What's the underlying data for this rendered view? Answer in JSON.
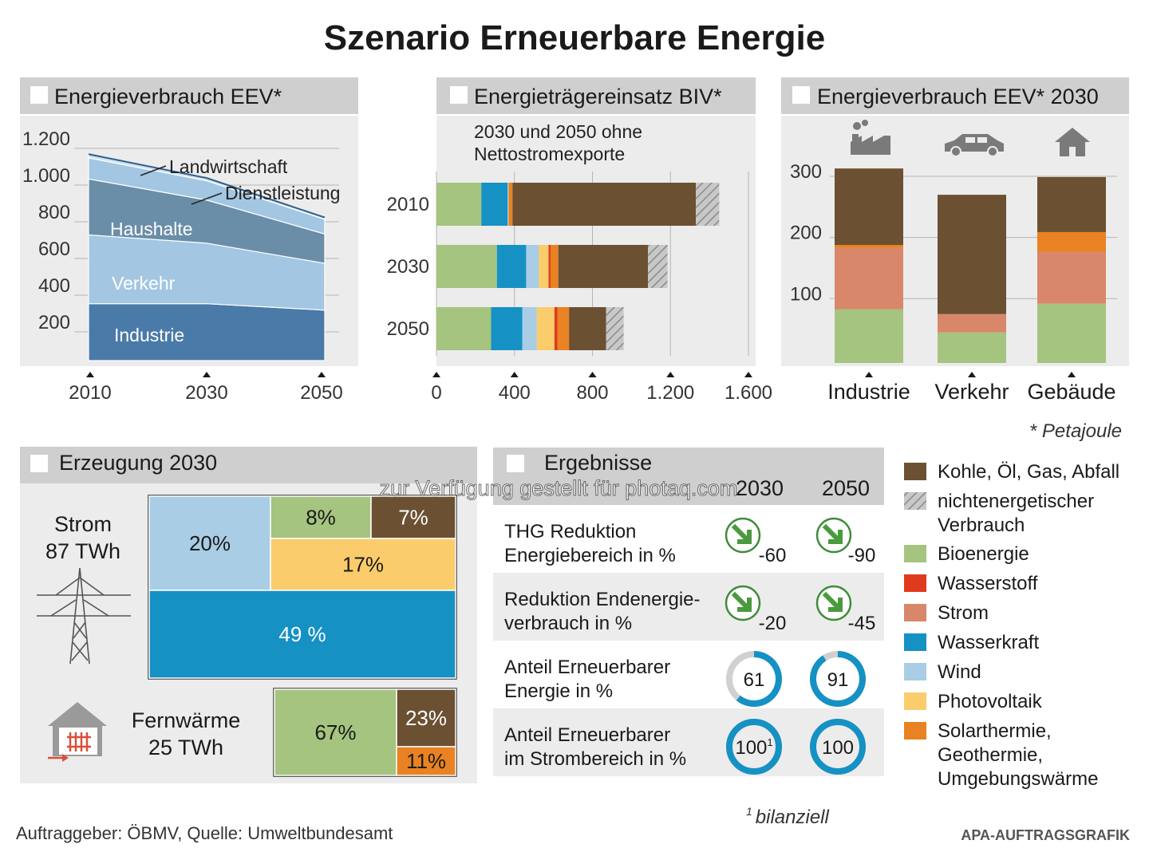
{
  "title": "Szenario Erneuerbare Energie",
  "colors": {
    "kohle": "#6b5032",
    "bio": "#a5c47f",
    "wasserstoff": "#e03a1e",
    "strom": "#d9876a",
    "wasserkraft": "#1591c4",
    "wind": "#a8cde5",
    "pv": "#fbcc6b",
    "solar": "#e98222",
    "area_dark": "#4a7aa8",
    "area_mid": "#6a8ea8",
    "area_light": "#a3c6e2",
    "panel_bg": "#ececec",
    "header_bg": "#cfcfcf"
  },
  "chart_data": [
    {
      "type": "area",
      "title": "Energieverbrauch EEV*",
      "x": [
        "2010",
        "2030",
        "2050"
      ],
      "ylim": [
        0,
        1200
      ],
      "yticks": [
        "1.200",
        "1.000",
        "800",
        "600",
        "400",
        "200"
      ],
      "series": [
        {
          "name": "Industrie",
          "values": [
            310,
            310,
            275
          ]
        },
        {
          "name": "Verkehr",
          "values": [
            375,
            330,
            255
          ]
        },
        {
          "name": "Haushalte",
          "values": [
            305,
            235,
            160
          ]
        },
        {
          "name": "Dienstleistung",
          "values": [
            115,
            105,
            80
          ]
        },
        {
          "name": "Landwirtschaft",
          "values": [
            20,
            15,
            10
          ]
        }
      ]
    },
    {
      "type": "bar",
      "orientation": "horizontal",
      "stacked": true,
      "title": "Energieträgereinsatz BIV*",
      "subtitle_lines": [
        "2030 und 2050 ohne",
        "Nettostromexporte"
      ],
      "categories": [
        "2010",
        "2030",
        "2050"
      ],
      "xlim": [
        0,
        1600
      ],
      "xticks": [
        "0",
        "400",
        "800",
        "1.200",
        "1.600"
      ],
      "series": [
        {
          "name": "Bioenergie",
          "values": [
            230,
            310,
            280
          ]
        },
        {
          "name": "Wasserkraft",
          "values": [
            135,
            150,
            160
          ]
        },
        {
          "name": "Wind",
          "values": [
            5,
            65,
            75
          ]
        },
        {
          "name": "Photovoltaik",
          "values": [
            0,
            50,
            90
          ]
        },
        {
          "name": "Wasserstoff",
          "values": [
            0,
            10,
            15
          ]
        },
        {
          "name": "Solarthermie, Geothermie, Umgebungswärme",
          "values": [
            20,
            40,
            60
          ]
        },
        {
          "name": "Kohle, Öl, Gas, Abfall",
          "values": [
            940,
            460,
            190
          ]
        },
        {
          "name": "nichtenergetischer Verbrauch",
          "values": [
            120,
            100,
            90
          ]
        }
      ]
    },
    {
      "type": "bar",
      "stacked": true,
      "title": "Energieverbrauch EEV* 2030",
      "categories": [
        "Industrie",
        "Verkehr",
        "Gebäude"
      ],
      "ylim": [
        0,
        330
      ],
      "yticks": [
        "300",
        "200",
        "100"
      ],
      "series": [
        {
          "name": "Bioenergie",
          "values": [
            88,
            50,
            97
          ]
        },
        {
          "name": "Wasserstoff",
          "values": [
            0,
            0,
            0
          ]
        },
        {
          "name": "Strom",
          "values": [
            100,
            30,
            85
          ]
        },
        {
          "name": "Solarthermie, Geothermie, Umgebungswärme",
          "values": [
            5,
            0,
            32
          ]
        },
        {
          "name": "Kohle, Öl, Gas, Abfall",
          "values": [
            125,
            195,
            90
          ]
        }
      ]
    },
    {
      "type": "treemap",
      "title": "Erzeugung 2030",
      "groups": [
        {
          "label_line1": "Strom",
          "label_line2": "87 TWh",
          "cells": [
            {
              "label": "20%",
              "value": 20,
              "color": "wind"
            },
            {
              "label": "8%",
              "value": 8,
              "color": "bio"
            },
            {
              "label": "7%",
              "value": 7,
              "color": "kohle"
            },
            {
              "label": "17%",
              "value": 17,
              "color": "pv"
            },
            {
              "label": "49 %",
              "value": 49,
              "color": "wasserkraft"
            }
          ]
        },
        {
          "label_line1": "Fernwärme",
          "label_line2": "25 TWh",
          "cells": [
            {
              "label": "67%",
              "value": 67,
              "color": "bio"
            },
            {
              "label": "23%",
              "value": 23,
              "color": "kohle"
            },
            {
              "label": "11%",
              "value": 11,
              "color": "solar"
            }
          ]
        }
      ]
    }
  ],
  "results": {
    "title": "Ergebnisse",
    "col_2030": "2030",
    "col_2050": "2050",
    "rows": [
      {
        "line1": "THG Reduktion",
        "line2": "Energiebereich in %",
        "v2030": "-60",
        "v2050": "-90",
        "kind": "arrow"
      },
      {
        "line1": "Reduktion Endenergie-",
        "line2": "verbrauch in %",
        "v2030": "-20",
        "v2050": "-45",
        "kind": "arrow"
      },
      {
        "line1": "Anteil Erneuerbarer",
        "line2": "Energie in %",
        "v2030": "61",
        "v2050": "91",
        "p2030": 0.61,
        "p2050": 0.91,
        "kind": "ring"
      },
      {
        "line1": "Anteil Erneuerbarer",
        "line2": "im Strombereich in %",
        "v2030": "100",
        "v2030_sup": "1",
        "v2050": "100",
        "p2030": 1.0,
        "p2050": 1.0,
        "kind": "ring"
      }
    ]
  },
  "legend": [
    {
      "lines": [
        "Kohle, Öl, Gas, Abfall"
      ],
      "color": "kohle"
    },
    {
      "lines": [
        "nichtenergetischer",
        "Verbrauch"
      ],
      "color": "hatch"
    },
    {
      "lines": [
        "Bioenergie"
      ],
      "color": "bio"
    },
    {
      "lines": [
        "Wasserstoff"
      ],
      "color": "wasserstoff"
    },
    {
      "lines": [
        "Strom"
      ],
      "color": "strom"
    },
    {
      "lines": [
        "Wasserkraft"
      ],
      "color": "wasserkraft"
    },
    {
      "lines": [
        "Wind"
      ],
      "color": "wind"
    },
    {
      "lines": [
        "Photovoltaik"
      ],
      "color": "pv"
    },
    {
      "lines": [
        "Solarthermie,",
        "Geothermie,",
        "Umgebungswärme"
      ],
      "color": "solar"
    }
  ],
  "footnotes": {
    "petajoule": "* Petajoule",
    "bilanziell_sup": "1",
    "bilanziell": "bilanziell",
    "source": "Auftraggeber: ÖBMV, Quelle: Umweltbundesamt",
    "agency": "APA-AUFTRAGSGRAFIK",
    "watermark": "zur Verfügung gestellt für photaq.com"
  }
}
